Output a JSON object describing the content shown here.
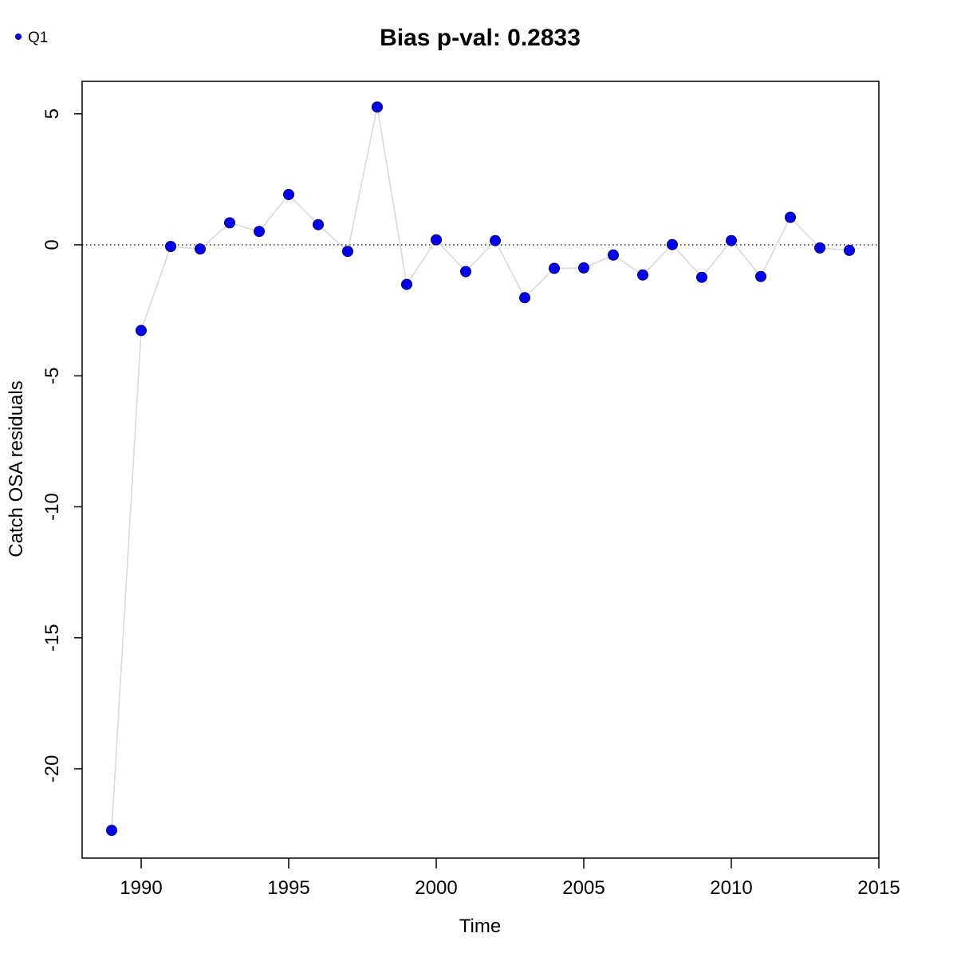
{
  "legend": {
    "marker": "filled-circle",
    "label": "Q1"
  },
  "chart_data": {
    "type": "scatter",
    "series_name": "Q1",
    "title": "Bias p-val: 0.2833",
    "xlabel": "Time",
    "ylabel": "Catch OSA residuals",
    "x": [
      1989,
      1990,
      1991,
      1992,
      1993,
      1994,
      1995,
      1996,
      1997,
      1998,
      1999,
      2000,
      2001,
      2002,
      2003,
      2004,
      2005,
      2006,
      2007,
      2008,
      2009,
      2010,
      2011,
      2012,
      2013,
      2014
    ],
    "y": [
      -22.35,
      -3.27,
      -0.06,
      -0.16,
      0.84,
      0.51,
      1.92,
      0.77,
      -0.25,
      5.26,
      -1.51,
      0.19,
      -1.02,
      0.16,
      -2.02,
      -0.9,
      -0.88,
      -0.39,
      -1.15,
      0.01,
      -1.24,
      0.16,
      -1.21,
      1.05,
      -0.12,
      -0.21
    ],
    "xlim": [
      1988,
      2015
    ],
    "ylim": [
      -23.41,
      6.24
    ],
    "xticks": [
      1990,
      1995,
      2000,
      2005,
      2010,
      2015
    ],
    "yticks": [
      5,
      0,
      -5,
      -10,
      -15,
      -20
    ],
    "zero_line_y": 0,
    "grid": false,
    "legend_position": "top-left",
    "point_color": "#0202E8",
    "point_edge_color": "#000066",
    "line_color": "#D9D9D9",
    "title_color": "#228B22"
  }
}
